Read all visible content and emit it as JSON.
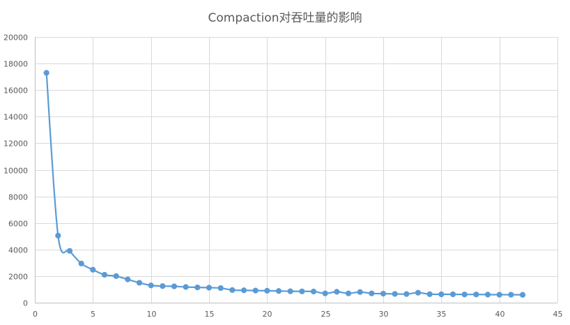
{
  "chart_data": {
    "type": "scatter",
    "title": "Compaction对吞吐量的影响",
    "xlabel": "",
    "ylabel": "",
    "xlim": [
      0,
      45
    ],
    "ylim": [
      0,
      20000
    ],
    "x_ticks": [
      0,
      5,
      10,
      15,
      20,
      25,
      30,
      35,
      40,
      45
    ],
    "y_ticks": [
      0,
      2000,
      4000,
      6000,
      8000,
      10000,
      12000,
      14000,
      16000,
      18000,
      20000
    ],
    "grid": true,
    "legend": "none",
    "smooth": true,
    "series_color": "#5b9bd5",
    "series": [
      {
        "x": [
          1,
          2,
          3,
          4,
          5,
          6,
          7,
          8,
          9,
          10,
          11,
          12,
          13,
          14,
          15,
          16,
          17,
          18,
          19,
          20,
          21,
          22,
          23,
          24,
          25,
          26,
          27,
          28,
          29,
          30,
          31,
          32,
          33,
          34,
          35,
          36,
          37,
          38,
          39,
          40,
          41,
          42
        ],
        "y": [
          17300,
          5050,
          3900,
          2950,
          2480,
          2100,
          2000,
          1750,
          1500,
          1300,
          1250,
          1230,
          1180,
          1150,
          1130,
          1100,
          950,
          930,
          910,
          900,
          880,
          860,
          850,
          840,
          700,
          820,
          700,
          800,
          700,
          680,
          660,
          650,
          750,
          640,
          630,
          630,
          620,
          620,
          610,
          600,
          600,
          590
        ]
      }
    ]
  }
}
